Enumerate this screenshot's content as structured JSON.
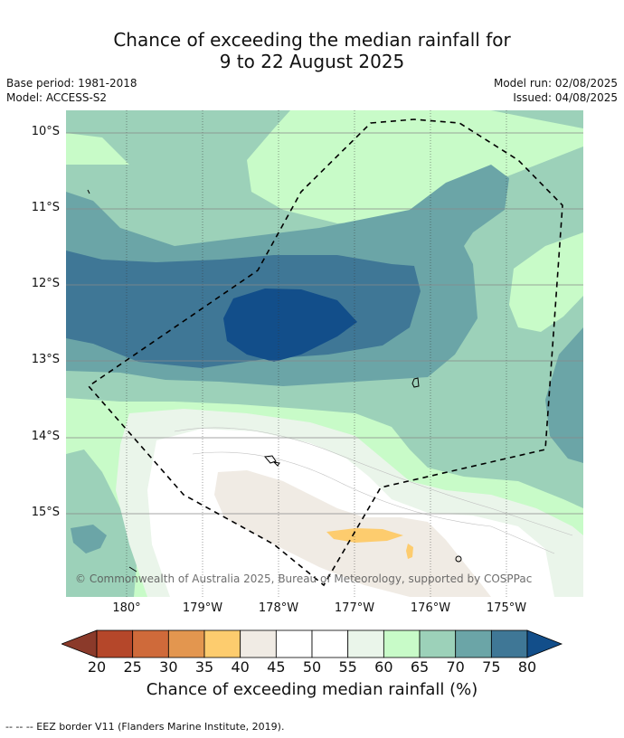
{
  "header": {
    "title_line1": "Chance of exceeding the median rainfall for",
    "title_line2": "9 to 22 August 2025",
    "base_period": "Base period: 1981-2018",
    "model": "Model: ACCESS-S2",
    "model_run": "Model run: 02/08/2025",
    "issued": "Issued: 04/08/2025"
  },
  "map": {
    "copyright": "© Commonwealth of Australia 2025, Bureau of Meteorology, supported by COSPPac",
    "lat_labels": [
      "10°S",
      "11°S",
      "12°S",
      "13°S",
      "14°S",
      "15°S"
    ],
    "lon_labels": [
      "180°",
      "179°W",
      "178°W",
      "177°W",
      "176°W",
      "175°W"
    ]
  },
  "colorbar": {
    "title": "Chance of exceeding median rainfall (%)",
    "ticks": [
      "20",
      "25",
      "30",
      "35",
      "40",
      "45",
      "50",
      "55",
      "60",
      "65",
      "70",
      "75",
      "80"
    ],
    "colors": {
      "lt20": "#8b3a2a",
      "c20_25": "#b5472a",
      "c25_30": "#cf6a3a",
      "c30_35": "#e3964f",
      "c35_40": "#fdcc6e",
      "c40_45": "#f0ebe4",
      "c45_50": "#ffffff",
      "c50_55": "#ffffff",
      "c55_60": "#eaf5ea",
      "c60_65": "#c8fbc8",
      "c65_70": "#9cd1b9",
      "c70_75": "#6ba5a7",
      "c75_80": "#3f7796",
      "gt80": "#124e8a"
    }
  },
  "footnote": "--  --  -- EEZ border V11 (Flanders Marine Institute, 2019)."
}
